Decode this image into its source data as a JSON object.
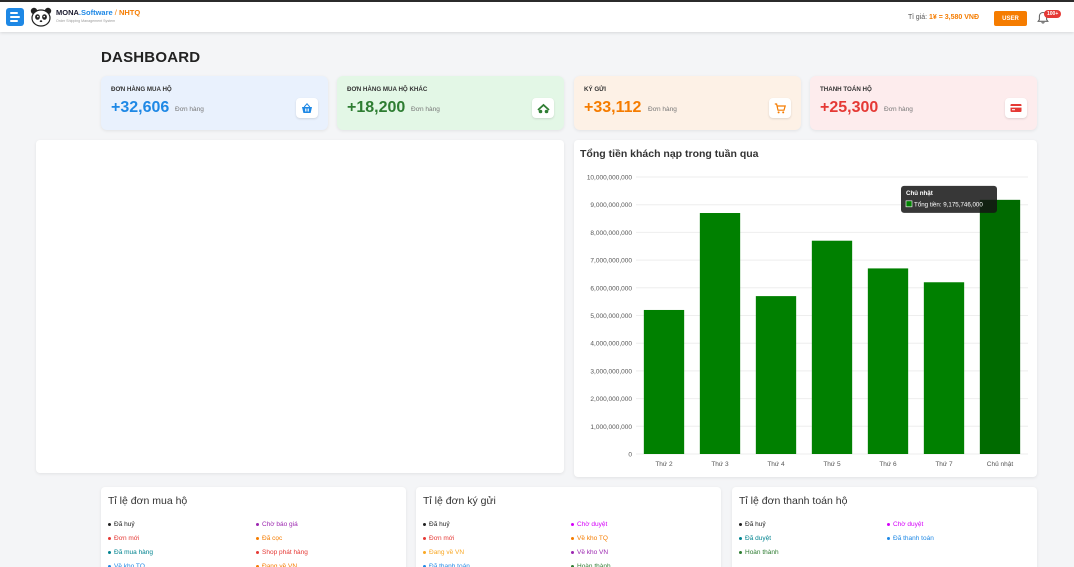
{
  "header": {
    "brand_prefix": "MONA",
    "brand_dot": ".",
    "brand_software": "Software",
    "brand_sep": " / ",
    "brand_nhtq": "NHTQ",
    "brand_sub": "Order Shipping Management System",
    "rate_label": "Tỉ giá:",
    "rate_value": "1¥ = 3,580 VNĐ",
    "user_label": "USER",
    "notif_count": "100+"
  },
  "page_title": "DASHBOARD",
  "stats": [
    {
      "label": "ĐƠN HÀNG MUA HỘ",
      "value": "+32,606",
      "unit": "Đơn hàng",
      "color": "#1e88e5",
      "bg": "#e9f1fd",
      "icon": "basket-icon"
    },
    {
      "label": "ĐƠN HÀNG MUA HỘ KHÁC",
      "value": "+18,200",
      "unit": "Đơn hàng",
      "color": "#2e7d32",
      "bg": "#e3f7e6",
      "icon": "truck-icon"
    },
    {
      "label": "KÝ GỬI",
      "value": "+33,112",
      "unit": "Đơn hàng",
      "color": "#f57c00",
      "bg": "#fdf1e6",
      "icon": "cart-icon"
    },
    {
      "label": "THANH TOÁN HỘ",
      "value": "+25,300",
      "unit": "Đơn hàng",
      "color": "#e53935",
      "bg": "#fdeced",
      "icon": "card-icon"
    }
  ],
  "chart": {
    "title": "Tổng tiền khách nạp trong tuần qua",
    "tooltip_title": "Chủ nhật",
    "tooltip_label": "Tổng tiền: 9,175,746,000"
  },
  "chart_data": {
    "type": "bar",
    "categories": [
      "Thứ 2",
      "Thứ 3",
      "Thứ 4",
      "Thứ 5",
      "Thứ 6",
      "Thứ 7",
      "Chủ nhật"
    ],
    "values": [
      5200000000,
      8700000000,
      5700000000,
      7700000000,
      6700000000,
      6200000000,
      9175746000
    ],
    "y_ticks": [
      "10,000,000,000",
      "9,000,000,000",
      "8,000,000,000",
      "7,000,000,000",
      "6,000,000,000",
      "5,000,000,000",
      "4,000,000,000",
      "3,000,000,000",
      "2,000,000,000",
      "1,000,000,000",
      "0"
    ],
    "ylim": [
      0,
      10000000000
    ],
    "bar_color": "#008000",
    "highlight_color": "#006b00",
    "grid": true
  },
  "ratios": [
    {
      "title": "Tỉ lệ đơn mua hộ",
      "items": [
        {
          "label": "Đã huỷ",
          "color": "#222222"
        },
        {
          "label": "Chờ báo giá",
          "color": "#9c27b0"
        },
        {
          "label": "Đơn mới",
          "color": "#e53935"
        },
        {
          "label": "Đã cọc",
          "color": "#f57c00"
        },
        {
          "label": "Đã mua hàng",
          "color": "#00838f"
        },
        {
          "label": "Shop phát hàng",
          "color": "#e53935"
        },
        {
          "label": "Về kho TQ",
          "color": "#1e88e5"
        },
        {
          "label": "Đang về VN",
          "color": "#f57c00"
        }
      ]
    },
    {
      "title": "Tỉ lệ đơn ký gửi",
      "items": [
        {
          "label": "Đã huỷ",
          "color": "#222222"
        },
        {
          "label": "Chờ duyệt",
          "color": "#d500f9"
        },
        {
          "label": "Đơn mới",
          "color": "#e53935"
        },
        {
          "label": "Về kho TQ",
          "color": "#f57c00"
        },
        {
          "label": "Đang về VN",
          "color": "#f9a825"
        },
        {
          "label": "Về kho VN",
          "color": "#9c27b0"
        },
        {
          "label": "Đã thanh toán",
          "color": "#1e88e5"
        },
        {
          "label": "Hoàn thành",
          "color": "#2e7d32"
        }
      ]
    },
    {
      "title": "Tỉ lệ đơn thanh toán hộ",
      "items": [
        {
          "label": "Đã huỷ",
          "color": "#222222"
        },
        {
          "label": "Chờ duyệt",
          "color": "#d500f9"
        },
        {
          "label": "Đã duyệt",
          "color": "#00838f"
        },
        {
          "label": "Đã thanh toán",
          "color": "#1e88e5"
        },
        {
          "label": "Hoàn thành",
          "color": "#2e7d32"
        }
      ]
    }
  ]
}
